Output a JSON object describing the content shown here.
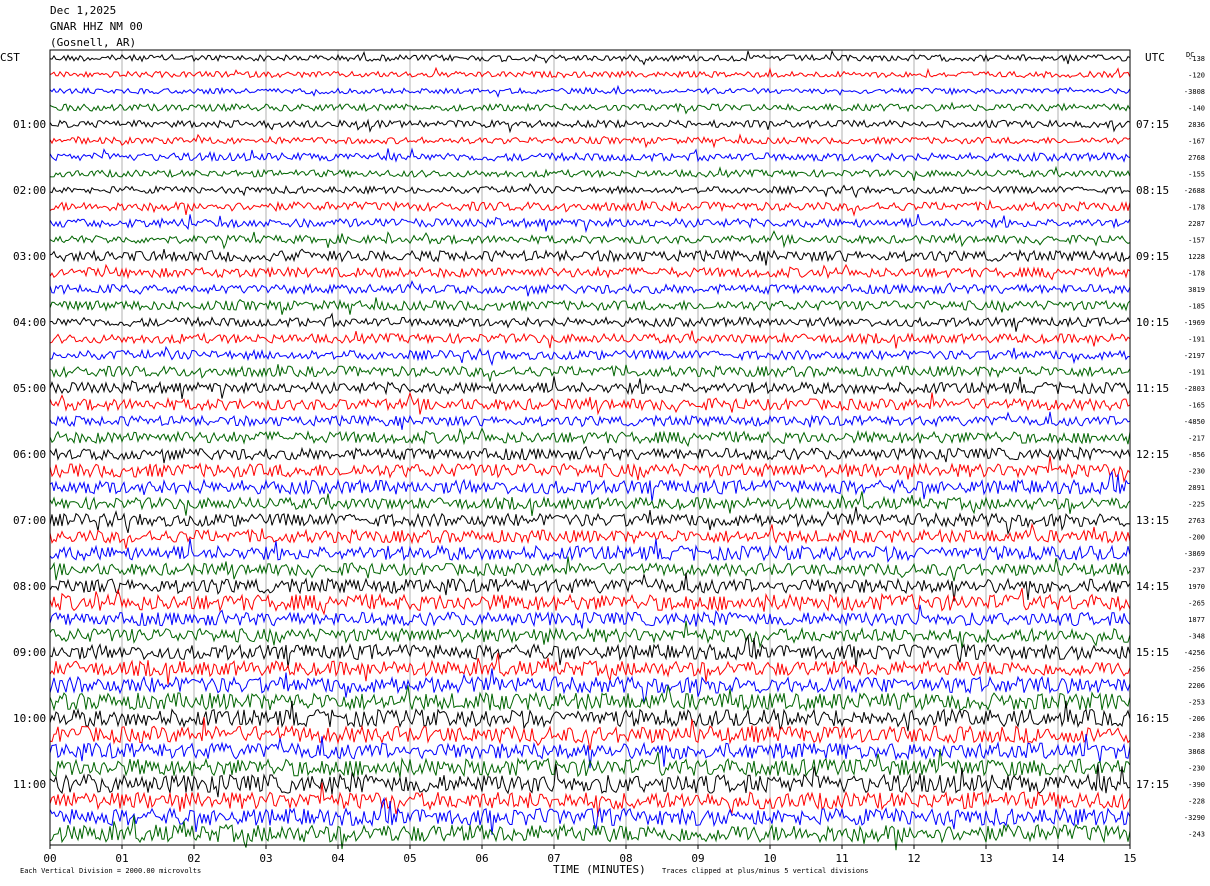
{
  "header": {
    "date": "Dec 1,2025",
    "station": "GNAR HHZ NM 00",
    "location": "(Gosnell, AR)"
  },
  "left_axis_label": "CST",
  "right_axis_label": "UTC",
  "dc_label": "DC",
  "footer": {
    "scale_note": "Each Vertical Division = 2000.00 microvolts",
    "clip_note": "Traces clipped at plus/minus 5 vertical divisions",
    "xlabel": "TIME (MINUTES)"
  },
  "colors": {
    "trace": [
      "#000000",
      "#ff0000",
      "#0000ff",
      "#006400"
    ],
    "grid": "#b0b0b0"
  },
  "chart_data": {
    "type": "line",
    "title": "GNAR HHZ NM 00",
    "xlabel": "TIME (MINUTES)",
    "xlim": [
      0,
      15
    ],
    "x_ticks": [
      "00",
      "01",
      "02",
      "03",
      "04",
      "05",
      "06",
      "07",
      "08",
      "09",
      "10",
      "11",
      "12",
      "13",
      "14",
      "15"
    ],
    "left_ticks": [
      "01:00",
      "02:00",
      "03:00",
      "04:00",
      "05:00",
      "06:00",
      "07:00",
      "08:00",
      "09:00",
      "10:00",
      "11:00"
    ],
    "right_ticks": [
      "07:15",
      "08:15",
      "09:15",
      "10:15",
      "11:15",
      "12:15",
      "13:15",
      "14:15",
      "15:15",
      "16:15",
      "17:15"
    ],
    "trace_count": 48,
    "minutes_per_trace": 15,
    "dc_offsets": [
      "-138",
      "-120",
      "-3808",
      "-140",
      "2836",
      "-167",
      "2768",
      "-155",
      "-2688",
      "-178",
      "2287",
      "-157",
      "1228",
      "-178",
      "3819",
      "-185",
      "-1969",
      "-191",
      "-2197",
      "-191",
      "-2803",
      "-165",
      "-4850",
      "-217",
      "-856",
      "-230",
      "2891",
      "-225",
      "2763",
      "-200",
      "-3869",
      "-237",
      "1970",
      "-265",
      "1877",
      "-348",
      "-4256",
      "-256",
      "2206",
      "-253",
      "-206",
      "-238",
      "3868",
      "-230",
      "-390",
      "-228",
      "-3290",
      "-243"
    ]
  }
}
